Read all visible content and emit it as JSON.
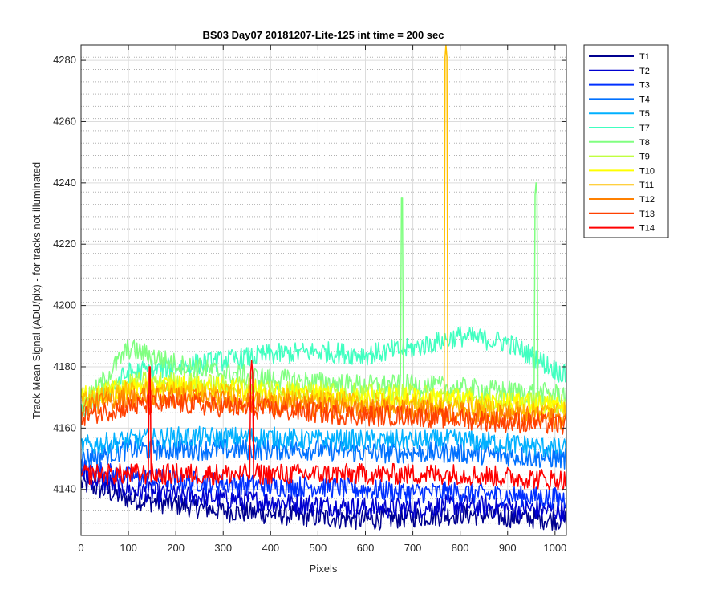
{
  "chart_data": {
    "type": "line",
    "title": "BS03 Day07 20181207-Lite-125 int time = 200 sec",
    "xlabel": "Pixels",
    "ylabel": "Track Mean Signal (ADU/pix) - for tracks not illuminated",
    "xlim": [
      0,
      1024
    ],
    "ylim": [
      4125,
      4285
    ],
    "x_ticks": [
      0,
      100,
      200,
      300,
      400,
      500,
      600,
      700,
      800,
      900,
      1000
    ],
    "y_ticks": [
      4140,
      4160,
      4180,
      4200,
      4220,
      4240,
      4260,
      4280
    ],
    "grid": "on",
    "minor_grid": "on",
    "legend_position": "outside-top-right",
    "x": [
      0,
      100,
      200,
      300,
      400,
      500,
      600,
      700,
      800,
      900,
      1024
    ],
    "series": [
      {
        "name": "T1",
        "color": "#00008f",
        "values": [
          4142,
          4137,
          4135,
          4133,
          4132,
          4131,
          4130,
          4131,
          4132,
          4131,
          4130
        ]
      },
      {
        "name": "T2",
        "color": "#0000d0",
        "values": [
          4145,
          4140,
          4138,
          4137,
          4136,
          4135,
          4134,
          4134,
          4135,
          4134,
          4133
        ]
      },
      {
        "name": "T3",
        "color": "#0030ff",
        "values": [
          4147,
          4144,
          4143,
          4142,
          4141,
          4141,
          4140,
          4139,
          4139,
          4138,
          4137
        ]
      },
      {
        "name": "T4",
        "color": "#0070ff",
        "values": [
          4150,
          4153,
          4153,
          4153,
          4153,
          4153,
          4152,
          4152,
          4152,
          4151,
          4150
        ]
      },
      {
        "name": "T5",
        "color": "#00b0ff",
        "values": [
          4154,
          4156,
          4157,
          4157,
          4157,
          4156,
          4156,
          4156,
          4156,
          4155,
          4153
        ]
      },
      {
        "name": "T7",
        "color": "#40ffc0",
        "values": [
          4165,
          4178,
          4180,
          4182,
          4184,
          4185,
          4184,
          4186,
          4190,
          4188,
          4177
        ]
      },
      {
        "name": "T8",
        "color": "#80ff80",
        "values": [
          4166,
          4186,
          4181,
          4178,
          4176,
          4175,
          4174,
          4174,
          4173,
          4172,
          4171
        ]
      },
      {
        "name": "T9",
        "color": "#c0ff40",
        "values": [
          4169,
          4175,
          4175,
          4174,
          4173,
          4172,
          4171,
          4171,
          4170,
          4169,
          4168
        ]
      },
      {
        "name": "T10",
        "color": "#ffff00",
        "values": [
          4170,
          4173,
          4174,
          4173,
          4172,
          4171,
          4170,
          4170,
          4169,
          4168,
          4167
        ]
      },
      {
        "name": "T11",
        "color": "#ffc000",
        "values": [
          4169,
          4172,
          4172,
          4171,
          4170,
          4169,
          4168,
          4168,
          4167,
          4166,
          4165
        ]
      },
      {
        "name": "T12",
        "color": "#ff8000",
        "values": [
          4167,
          4170,
          4170,
          4169,
          4168,
          4167,
          4166,
          4166,
          4165,
          4164,
          4163
        ]
      },
      {
        "name": "T13",
        "color": "#ff4000",
        "values": [
          4164,
          4167,
          4168,
          4167,
          4166,
          4165,
          4164,
          4164,
          4163,
          4162,
          4161
        ]
      },
      {
        "name": "T14",
        "color": "#ff0000",
        "values": [
          4145,
          4145,
          4145,
          4145,
          4145,
          4145,
          4145,
          4145,
          4145,
          4144,
          4143
        ]
      }
    ],
    "spikes": [
      {
        "series": "T14",
        "x": 145,
        "y": 4182
      },
      {
        "series": "T14",
        "x": 360,
        "y": 4182
      },
      {
        "series": "T8",
        "x": 677,
        "y": 4237
      },
      {
        "series": "T11",
        "x": 770,
        "y": 4285
      },
      {
        "series": "T8",
        "x": 960,
        "y": 4240
      }
    ]
  }
}
